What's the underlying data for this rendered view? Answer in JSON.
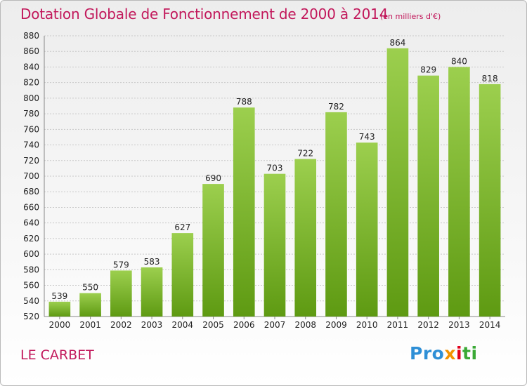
{
  "header": {
    "title": "Dotation Globale de Fonctionnement de 2000 à 2014",
    "unit": "(en milliers d'€)"
  },
  "footer": {
    "commune": "LE CARBET",
    "logo": [
      "Pro",
      "x",
      "i",
      "ti"
    ]
  },
  "colors": {
    "title": "#c2185b",
    "bar_top": "#9ccf4e",
    "bar_bottom": "#5e9a12",
    "grid": "#c8c8c8",
    "axis_text": "#222222"
  },
  "chart_data": {
    "type": "bar",
    "title": "Dotation Globale de Fonctionnement de 2000 à 2014",
    "subtitle": "(en milliers d'€)",
    "xlabel": "",
    "ylabel": "",
    "categories": [
      "2000",
      "2001",
      "2002",
      "2003",
      "2004",
      "2005",
      "2006",
      "2007",
      "2008",
      "2009",
      "2010",
      "2011",
      "2012",
      "2013",
      "2014"
    ],
    "values": [
      539,
      550,
      579,
      583,
      627,
      690,
      788,
      703,
      722,
      782,
      743,
      864,
      829,
      840,
      818
    ],
    "ylim": [
      520,
      880
    ],
    "yticks": [
      520,
      540,
      560,
      580,
      600,
      620,
      640,
      660,
      680,
      700,
      720,
      740,
      760,
      780,
      800,
      820,
      840,
      860,
      880
    ],
    "grid": true,
    "data_labels": true,
    "legend": "none"
  }
}
